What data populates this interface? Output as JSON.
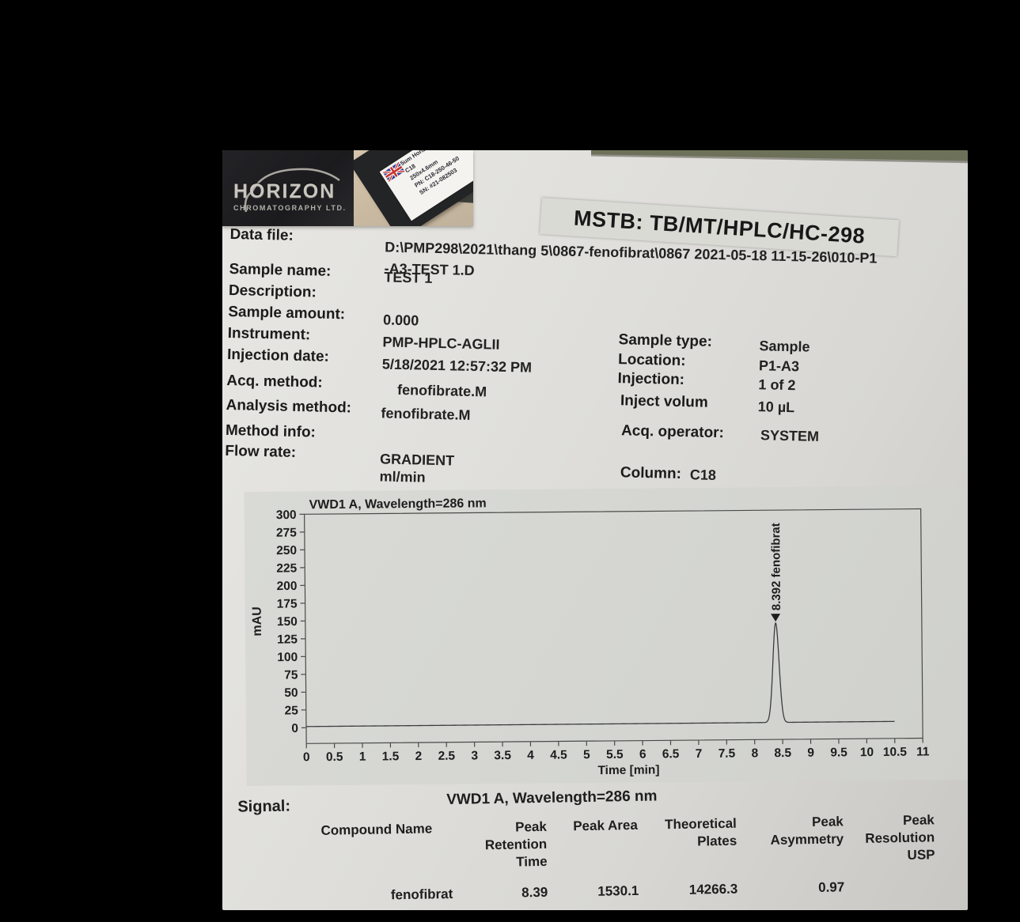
{
  "brand": {
    "logo_text": "HORIZON",
    "logo_sub": "CHROMATOGRAPHY LTD.",
    "box_label_lines": "5um Horizon\nC18\n250x4.6mm\nPN: C18-250-46-50\nSN: #21-082503"
  },
  "stamp": "MSTB: TB/MT/HPLC/HC-298",
  "fields_left": [
    {
      "label": "Data file:",
      "value": "D:\\PMP298\\2021\\thang 5\\0867-fenofibrat\\0867 2021-05-18 11-15-26\\010-P1",
      "value2": "-A3-TEST 1.D"
    },
    {
      "label": "Sample name:",
      "value": "TEST 1"
    },
    {
      "label": "Description:",
      "value": ""
    },
    {
      "label": "Sample amount:",
      "value": "0.000"
    },
    {
      "label": "Instrument:",
      "value": "PMP-HPLC-AGLII"
    },
    {
      "label": "Injection date:",
      "value": "5/18/2021 12:57:32 PM"
    },
    {
      "label": "Acq. method:",
      "value": "fenofibrate.M"
    },
    {
      "label": "Analysis method:",
      "value": "fenofibrate.M"
    },
    {
      "label": "Method info:",
      "value": ""
    },
    {
      "label": "Flow rate:",
      "value": "GRADIENT",
      "value2": "ml/min"
    }
  ],
  "fields_right": [
    {
      "label": "Sample type:",
      "value": "Sample"
    },
    {
      "label": "Location:",
      "value": "P1-A3"
    },
    {
      "label": "Injection:",
      "value": "1 of 2"
    },
    {
      "label": "Inject volum",
      "value": "10 µL"
    },
    {
      "label": "Acq. operator:",
      "value": "SYSTEM"
    },
    {
      "label": "Column:",
      "value": "C18"
    }
  ],
  "chart_data": {
    "type": "line",
    "title": "VWD1 A, Wavelength=286 nm",
    "xlabel": "Time [min]",
    "ylabel": "mAU",
    "xlim": [
      0,
      11
    ],
    "xtick_step": 0.5,
    "ylim": [
      0,
      300
    ],
    "ytick_step": 25,
    "grid": false,
    "baseline_mAU": 0,
    "run_end_min": 10.5,
    "peaks": [
      {
        "compound": "fenofibrat",
        "retention_time_min": 8.392,
        "height_mAU": 140,
        "sigma_min": 0.055,
        "annotation": "8.392 fenofibrat"
      }
    ]
  },
  "signal": {
    "label": "Signal:",
    "value": "VWD1 A, Wavelength=286 nm",
    "columns": [
      "Compound Name",
      "Peak\nRetention\nTime",
      "Peak Area",
      "Theoretical\nPlates",
      "Peak\nAsymmetry",
      "Peak\nResolution\nUSP"
    ],
    "rows": [
      {
        "compound": "fenofibrat",
        "retention": "8.39",
        "area": "1530.1",
        "plates": "14266.3",
        "asymmetry": "0.97",
        "resolution": ""
      }
    ]
  }
}
